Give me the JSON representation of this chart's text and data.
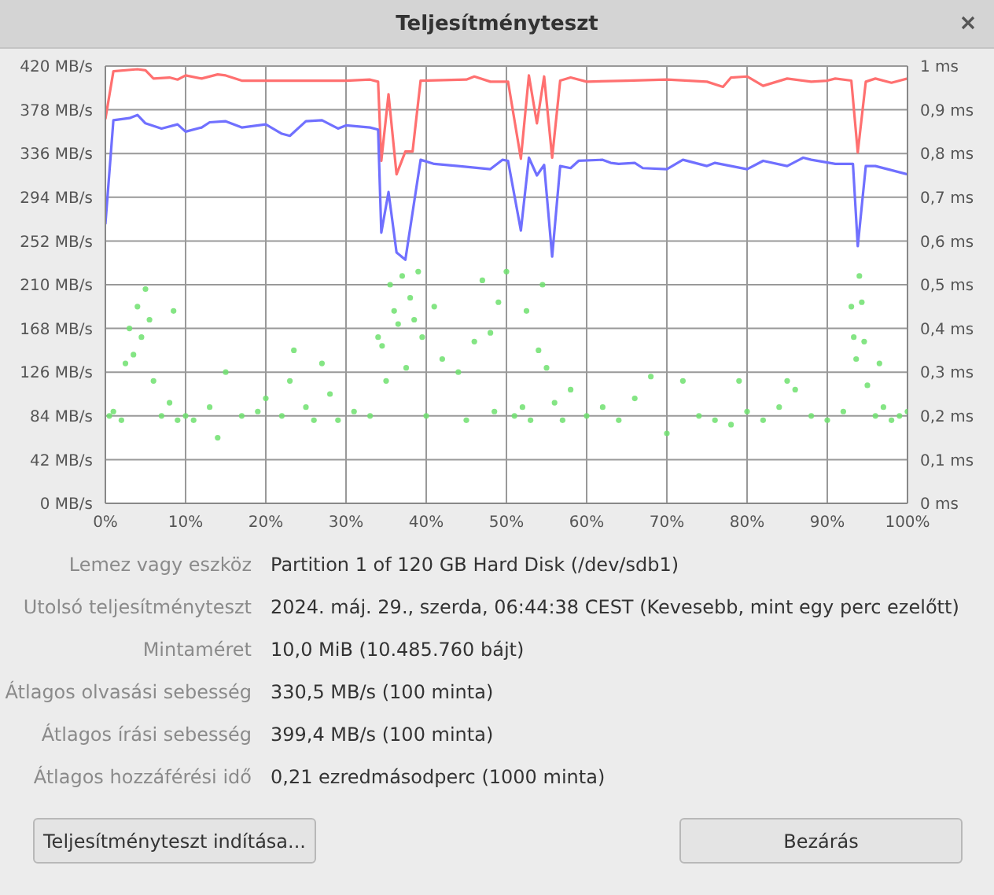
{
  "chart_data": {
    "type": "line",
    "title": "Teljesítményteszt",
    "xlim": [
      0,
      100
    ],
    "xticks": [
      {
        "value": 0,
        "label": "0%"
      },
      {
        "value": 10,
        "label": "10%"
      },
      {
        "value": 20,
        "label": "20%"
      },
      {
        "value": 30,
        "label": "30%"
      },
      {
        "value": 40,
        "label": "40%"
      },
      {
        "value": 50,
        "label": "50%"
      },
      {
        "value": 60,
        "label": "60%"
      },
      {
        "value": 70,
        "label": "70%"
      },
      {
        "value": 80,
        "label": "80%"
      },
      {
        "value": 90,
        "label": "90%"
      },
      {
        "value": 100,
        "label": "100%"
      }
    ],
    "ylim": [
      0,
      420
    ],
    "yticks": [
      {
        "value": 0,
        "label": "0 MB/s"
      },
      {
        "value": 42,
        "label": "42 MB/s"
      },
      {
        "value": 84,
        "label": "84 MB/s"
      },
      {
        "value": 126,
        "label": "126 MB/s"
      },
      {
        "value": 168,
        "label": "168 MB/s"
      },
      {
        "value": 210,
        "label": "210 MB/s"
      },
      {
        "value": 252,
        "label": "252 MB/s"
      },
      {
        "value": 294,
        "label": "294 MB/s"
      },
      {
        "value": 336,
        "label": "336 MB/s"
      },
      {
        "value": 378,
        "label": "378 MB/s"
      },
      {
        "value": 420,
        "label": "420 MB/s"
      }
    ],
    "y2lim": [
      0,
      1
    ],
    "y2ticks": [
      {
        "value": 0,
        "label": "0 ms"
      },
      {
        "value": 0.1,
        "label": "0,1 ms"
      },
      {
        "value": 0.2,
        "label": "0,2 ms"
      },
      {
        "value": 0.3,
        "label": "0,3 ms"
      },
      {
        "value": 0.4,
        "label": "0,4 ms"
      },
      {
        "value": 0.5,
        "label": "0,5 ms"
      },
      {
        "value": 0.6,
        "label": "0,6 ms"
      },
      {
        "value": 0.7,
        "label": "0,7 ms"
      },
      {
        "value": 0.8,
        "label": "0,8 ms"
      },
      {
        "value": 0.9,
        "label": "0,9 ms"
      },
      {
        "value": 1,
        "label": "1 ms"
      }
    ],
    "grid": true,
    "legend": false,
    "marker": "none",
    "line_style": "solid",
    "series": [
      {
        "color": "#ff7070",
        "x": [
          0,
          1,
          4,
          5,
          6,
          8,
          9,
          10,
          12,
          14,
          15,
          17,
          20,
          25,
          30,
          33,
          34,
          34.4,
          35.3,
          36.3,
          37.4,
          38.3,
          39.3,
          45,
          46,
          48,
          50.2,
          51.8,
          52.8,
          53.8,
          54.7,
          55.7,
          56.7,
          58,
          60,
          65,
          70,
          75,
          77,
          78,
          80,
          82,
          85,
          88,
          90,
          91,
          93,
          93.8,
          94.8,
          96,
          98,
          100
        ],
        "values": [
          369,
          415,
          417,
          416,
          408,
          409,
          407,
          411,
          408,
          412,
          411,
          406,
          406,
          406,
          406,
          407,
          405,
          329,
          393,
          316,
          338,
          338,
          406,
          407,
          410,
          405,
          405,
          331,
          411,
          365,
          410,
          332,
          406,
          409,
          405,
          406,
          407,
          405,
          400,
          409,
          410,
          401,
          408,
          405,
          406,
          408,
          406,
          337,
          405,
          408,
          404,
          408
        ]
      },
      {
        "color": "#7070ff",
        "x": [
          0,
          1,
          3,
          4,
          5,
          7,
          9,
          10,
          12,
          13,
          15,
          17,
          20,
          22,
          23,
          25,
          27,
          29,
          30,
          33,
          34,
          34.4,
          35.3,
          36.3,
          37.4,
          39.3,
          41,
          44,
          48,
          49.5,
          50.2,
          51.8,
          52.8,
          53.8,
          54.7,
          55.7,
          56.7,
          58,
          59,
          62,
          63,
          64,
          66,
          67,
          70,
          72,
          75,
          76,
          78,
          80,
          82,
          85,
          87,
          88,
          91,
          93.2,
          93.8,
          94.8,
          96,
          98,
          100
        ],
        "values": [
          268,
          368,
          370,
          373,
          365,
          360,
          364,
          357,
          361,
          366,
          367,
          361,
          364,
          355,
          353,
          367,
          368,
          360,
          363,
          361,
          359,
          260,
          299,
          241,
          234,
          330,
          326,
          324,
          321,
          330,
          329,
          262,
          332,
          315,
          325,
          237,
          324,
          322,
          329,
          330,
          327,
          326,
          327,
          322,
          321,
          330,
          324,
          327,
          324,
          321,
          329,
          324,
          332,
          330,
          326,
          326,
          247,
          324,
          324,
          320,
          316
        ]
      },
      {
        "type": "scatter",
        "axis": "y2",
        "color": "#6fe06f",
        "marker": "circle",
        "x": [
          0.5,
          1,
          2,
          2.5,
          3,
          3.5,
          4,
          4.5,
          5,
          5.5,
          6,
          7,
          8,
          8.5,
          9,
          10,
          11,
          13,
          14,
          15,
          17,
          19,
          20,
          22,
          23,
          23.5,
          25,
          26,
          27,
          28,
          29,
          31,
          33,
          34,
          34.5,
          35,
          35.5,
          36,
          36.5,
          37,
          37.5,
          38,
          38.5,
          39,
          39.5,
          40,
          41,
          42,
          44,
          45,
          46,
          47,
          48,
          48.5,
          49,
          50,
          51,
          52,
          52.5,
          53,
          54,
          54.5,
          55,
          56,
          57,
          58,
          60,
          62,
          64,
          66,
          68,
          70,
          72,
          74,
          76,
          78,
          79,
          80,
          82,
          84,
          85,
          86,
          88,
          90,
          92,
          93,
          93.3,
          93.6,
          94,
          94.3,
          94.6,
          95,
          96,
          96.5,
          97,
          98,
          99,
          100
        ],
        "values": [
          0.2,
          0.21,
          0.19,
          0.32,
          0.4,
          0.34,
          0.45,
          0.38,
          0.49,
          0.42,
          0.28,
          0.2,
          0.23,
          0.44,
          0.19,
          0.2,
          0.19,
          0.22,
          0.15,
          0.3,
          0.2,
          0.21,
          0.24,
          0.2,
          0.28,
          0.35,
          0.22,
          0.19,
          0.32,
          0.25,
          0.19,
          0.21,
          0.2,
          0.38,
          0.36,
          0.28,
          0.5,
          0.44,
          0.41,
          0.52,
          0.31,
          0.47,
          0.42,
          0.53,
          0.38,
          0.2,
          0.45,
          0.33,
          0.3,
          0.19,
          0.37,
          0.51,
          0.39,
          0.21,
          0.46,
          0.53,
          0.2,
          0.22,
          0.44,
          0.19,
          0.35,
          0.5,
          0.31,
          0.23,
          0.19,
          0.26,
          0.2,
          0.22,
          0.19,
          0.24,
          0.29,
          0.16,
          0.28,
          0.2,
          0.19,
          0.18,
          0.28,
          0.21,
          0.19,
          0.22,
          0.28,
          0.26,
          0.2,
          0.19,
          0.21,
          0.45,
          0.38,
          0.33,
          0.52,
          0.46,
          0.37,
          0.27,
          0.2,
          0.32,
          0.22,
          0.19,
          0.2,
          0.21
        ]
      }
    ],
    "annotations": [
      "Lemez vagy eszköz",
      "Partition 1 of 120 GB Hard Disk (/dev/sdb1)",
      "Utolsó teljesítményteszt",
      "2024. máj. 29., szerda, 06:44:38 CEST (Kevesebb, mint egy perc ezelőtt)",
      "Mintaméret",
      "10,0 MiB (10.485.760 bájt)",
      "Átlagos olvasási sebesség",
      "330,5 MB/s (100 minta)",
      "Átlagos írási sebesség",
      "399,4 MB/s (100 minta)",
      "Átlagos hozzáférési idő",
      "0,21 ezredmásodperc (1000 minta)",
      "Teljesítményteszt indítása...",
      "Bezárás"
    ]
  }
}
